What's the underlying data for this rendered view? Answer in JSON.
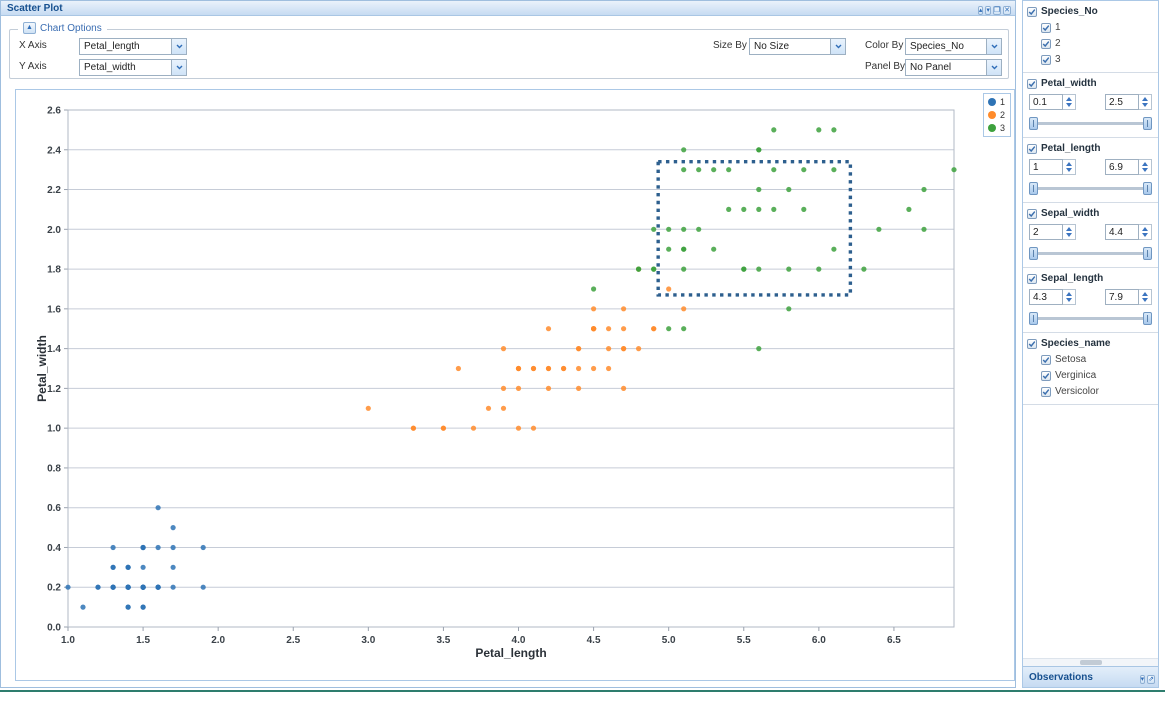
{
  "window": {
    "title": "Scatter Plot",
    "buttons": [
      {
        "name": "pin",
        "glyph": "▴"
      },
      {
        "name": "minimize",
        "glyph": "▾"
      },
      {
        "name": "restore",
        "glyph": "❐"
      },
      {
        "name": "close",
        "glyph": "✕"
      }
    ]
  },
  "chart_options": {
    "label": "Chart Options",
    "collapse_icon": "▲",
    "x_axis": {
      "label": "X Axis",
      "value": "Petal_length"
    },
    "y_axis": {
      "label": "Y Axis",
      "value": "Petal_width"
    },
    "size_by": {
      "label": "Size By",
      "value": "No Size"
    },
    "color_by": {
      "label": "Color By",
      "value": "Species_No"
    },
    "panel_by": {
      "label": "Panel By",
      "value": "No Panel"
    }
  },
  "chart_data": {
    "type": "scatter",
    "xlabel": "Petal_length",
    "ylabel": "Petal_width",
    "xlim": [
      1.0,
      6.9
    ],
    "ylim": [
      0.0,
      2.6
    ],
    "grid": "horizontal",
    "x_ticks": [
      {
        "v": 1.0,
        "label": "1.0"
      },
      {
        "v": 1.5,
        "label": "1.5"
      },
      {
        "v": 2.0,
        "label": "2.0"
      },
      {
        "v": 2.5,
        "label": "2.5"
      },
      {
        "v": 3.0,
        "label": "3.0"
      },
      {
        "v": 3.5,
        "label": "3.5"
      },
      {
        "v": 4.0,
        "label": "4.0"
      },
      {
        "v": 4.5,
        "label": "4.5"
      },
      {
        "v": 5.0,
        "label": "5.0"
      },
      {
        "v": 5.5,
        "label": "5.5"
      },
      {
        "v": 6.0,
        "label": "6.0"
      },
      {
        "v": 6.5,
        "label": "6.5"
      }
    ],
    "y_ticks": [
      {
        "v": 0.0,
        "label": "0.0"
      },
      {
        "v": 0.2,
        "label": "0.2"
      },
      {
        "v": 0.4,
        "label": "0.4"
      },
      {
        "v": 0.6,
        "label": "0.6"
      },
      {
        "v": 0.8,
        "label": "0.8"
      },
      {
        "v": 1.0,
        "label": "1.0"
      },
      {
        "v": 1.2,
        "label": "1.2"
      },
      {
        "v": 1.4,
        "label": "1.4"
      },
      {
        "v": 1.6,
        "label": "1.6"
      },
      {
        "v": 1.8,
        "label": "1.8"
      },
      {
        "v": 2.0,
        "label": "2.0"
      },
      {
        "v": 2.2,
        "label": "2.2"
      },
      {
        "v": 2.4,
        "label": "2.4"
      },
      {
        "v": 2.6,
        "label": "2.6"
      }
    ],
    "legend": {
      "position": "top-right",
      "entries": [
        {
          "label": "1",
          "color": "#2e73b5"
        },
        {
          "label": "2",
          "color": "#ff8b2b"
        },
        {
          "label": "3",
          "color": "#3da13d"
        }
      ]
    },
    "selection_rect": {
      "x0": 4.93,
      "x1": 6.21,
      "y0": 1.67,
      "y1": 2.34,
      "color": "#2d5f8e"
    },
    "series": [
      {
        "name": "1",
        "color": "#2e73b5",
        "points": [
          [
            1.4,
            0.2
          ],
          [
            1.4,
            0.2
          ],
          [
            1.3,
            0.2
          ],
          [
            1.5,
            0.2
          ],
          [
            1.4,
            0.2
          ],
          [
            1.7,
            0.4
          ],
          [
            1.4,
            0.3
          ],
          [
            1.5,
            0.2
          ],
          [
            1.4,
            0.2
          ],
          [
            1.5,
            0.1
          ],
          [
            1.5,
            0.2
          ],
          [
            1.6,
            0.2
          ],
          [
            1.4,
            0.1
          ],
          [
            1.1,
            0.1
          ],
          [
            1.2,
            0.2
          ],
          [
            1.5,
            0.4
          ],
          [
            1.3,
            0.4
          ],
          [
            1.4,
            0.3
          ],
          [
            1.7,
            0.3
          ],
          [
            1.5,
            0.3
          ],
          [
            1.7,
            0.2
          ],
          [
            1.5,
            0.4
          ],
          [
            1.0,
            0.2
          ],
          [
            1.7,
            0.5
          ],
          [
            1.9,
            0.2
          ],
          [
            1.6,
            0.2
          ],
          [
            1.6,
            0.4
          ],
          [
            1.5,
            0.2
          ],
          [
            1.4,
            0.2
          ],
          [
            1.6,
            0.2
          ],
          [
            1.6,
            0.2
          ],
          [
            1.5,
            0.4
          ],
          [
            1.5,
            0.1
          ],
          [
            1.4,
            0.2
          ],
          [
            1.5,
            0.2
          ],
          [
            1.2,
            0.2
          ],
          [
            1.3,
            0.2
          ],
          [
            1.4,
            0.1
          ],
          [
            1.3,
            0.2
          ],
          [
            1.5,
            0.2
          ],
          [
            1.3,
            0.3
          ],
          [
            1.3,
            0.3
          ],
          [
            1.3,
            0.2
          ],
          [
            1.6,
            0.6
          ],
          [
            1.9,
            0.4
          ],
          [
            1.4,
            0.3
          ],
          [
            1.6,
            0.2
          ],
          [
            1.4,
            0.2
          ],
          [
            1.5,
            0.2
          ],
          [
            1.4,
            0.2
          ]
        ]
      },
      {
        "name": "2",
        "color": "#ff8b2b",
        "points": [
          [
            4.7,
            1.4
          ],
          [
            4.5,
            1.5
          ],
          [
            4.9,
            1.5
          ],
          [
            4.0,
            1.3
          ],
          [
            4.6,
            1.5
          ],
          [
            4.5,
            1.3
          ],
          [
            4.7,
            1.6
          ],
          [
            3.3,
            1.0
          ],
          [
            4.6,
            1.3
          ],
          [
            3.9,
            1.4
          ],
          [
            3.5,
            1.0
          ],
          [
            4.2,
            1.5
          ],
          [
            4.0,
            1.0
          ],
          [
            4.7,
            1.4
          ],
          [
            3.6,
            1.3
          ],
          [
            4.4,
            1.4
          ],
          [
            4.5,
            1.5
          ],
          [
            4.1,
            1.0
          ],
          [
            4.5,
            1.5
          ],
          [
            3.9,
            1.1
          ],
          [
            4.8,
            1.8
          ],
          [
            4.0,
            1.3
          ],
          [
            4.9,
            1.5
          ],
          [
            4.7,
            1.2
          ],
          [
            4.3,
            1.3
          ],
          [
            4.4,
            1.4
          ],
          [
            4.8,
            1.4
          ],
          [
            5.0,
            1.7
          ],
          [
            4.5,
            1.5
          ],
          [
            3.5,
            1.0
          ],
          [
            3.8,
            1.1
          ],
          [
            3.7,
            1.0
          ],
          [
            3.9,
            1.2
          ],
          [
            5.1,
            1.6
          ],
          [
            4.5,
            1.5
          ],
          [
            4.5,
            1.6
          ],
          [
            4.7,
            1.5
          ],
          [
            4.4,
            1.3
          ],
          [
            4.1,
            1.3
          ],
          [
            4.0,
            1.3
          ],
          [
            4.4,
            1.2
          ],
          [
            4.6,
            1.4
          ],
          [
            4.0,
            1.2
          ],
          [
            3.3,
            1.0
          ],
          [
            4.2,
            1.3
          ],
          [
            4.2,
            1.2
          ],
          [
            4.2,
            1.3
          ],
          [
            4.3,
            1.3
          ],
          [
            3.0,
            1.1
          ],
          [
            4.1,
            1.3
          ]
        ]
      },
      {
        "name": "3",
        "color": "#3da13d",
        "points": [
          [
            6.0,
            2.5
          ],
          [
            5.1,
            1.9
          ],
          [
            5.9,
            2.1
          ],
          [
            5.6,
            1.8
          ],
          [
            5.8,
            2.2
          ],
          [
            6.6,
            2.1
          ],
          [
            4.5,
            1.7
          ],
          [
            6.3,
            1.8
          ],
          [
            5.8,
            1.8
          ],
          [
            6.1,
            2.5
          ],
          [
            5.1,
            2.0
          ],
          [
            5.3,
            1.9
          ],
          [
            5.5,
            2.1
          ],
          [
            5.0,
            2.0
          ],
          [
            5.1,
            2.4
          ],
          [
            5.3,
            2.3
          ],
          [
            5.5,
            1.8
          ],
          [
            6.7,
            2.2
          ],
          [
            6.9,
            2.3
          ],
          [
            5.0,
            1.5
          ],
          [
            5.7,
            2.3
          ],
          [
            4.9,
            2.0
          ],
          [
            6.7,
            2.0
          ],
          [
            4.9,
            1.8
          ],
          [
            5.7,
            2.1
          ],
          [
            6.0,
            1.8
          ],
          [
            4.8,
            1.8
          ],
          [
            4.9,
            1.8
          ],
          [
            5.6,
            2.1
          ],
          [
            5.8,
            1.6
          ],
          [
            6.1,
            1.9
          ],
          [
            6.4,
            2.0
          ],
          [
            5.6,
            2.2
          ],
          [
            5.1,
            1.5
          ],
          [
            5.6,
            1.4
          ],
          [
            6.1,
            2.3
          ],
          [
            5.6,
            2.4
          ],
          [
            5.5,
            1.8
          ],
          [
            4.8,
            1.8
          ],
          [
            5.4,
            2.1
          ],
          [
            5.6,
            2.4
          ],
          [
            5.1,
            2.3
          ],
          [
            5.1,
            1.9
          ],
          [
            5.9,
            2.3
          ],
          [
            5.7,
            2.5
          ],
          [
            5.2,
            2.3
          ],
          [
            5.0,
            1.9
          ],
          [
            5.2,
            2.0
          ],
          [
            5.4,
            2.3
          ],
          [
            5.1,
            1.8
          ]
        ]
      }
    ]
  },
  "sidebar": {
    "filters": [
      {
        "type": "checkgroup",
        "label": "Species_No",
        "checked": true,
        "items": [
          {
            "label": "1",
            "checked": true
          },
          {
            "label": "2",
            "checked": true
          },
          {
            "label": "3",
            "checked": true
          }
        ]
      },
      {
        "type": "range",
        "label": "Petal_width",
        "checked": true,
        "min": "0.1",
        "max": "2.5"
      },
      {
        "type": "range",
        "label": "Petal_length",
        "checked": true,
        "min": "1",
        "max": "6.9"
      },
      {
        "type": "range",
        "label": "Sepal_width",
        "checked": true,
        "min": "2",
        "max": "4.4"
      },
      {
        "type": "range",
        "label": "Sepal_length",
        "checked": true,
        "min": "4.3",
        "max": "7.9"
      },
      {
        "type": "checkgroup",
        "label": "Species_name",
        "checked": true,
        "items": [
          {
            "label": "Setosa",
            "checked": true
          },
          {
            "label": "Verginica",
            "checked": true
          },
          {
            "label": "Versicolor",
            "checked": true
          }
        ]
      }
    ],
    "observations": {
      "label": "Observations",
      "buttons": [
        {
          "name": "collapse",
          "glyph": "▾"
        },
        {
          "name": "popout",
          "glyph": "⇗"
        }
      ]
    }
  }
}
